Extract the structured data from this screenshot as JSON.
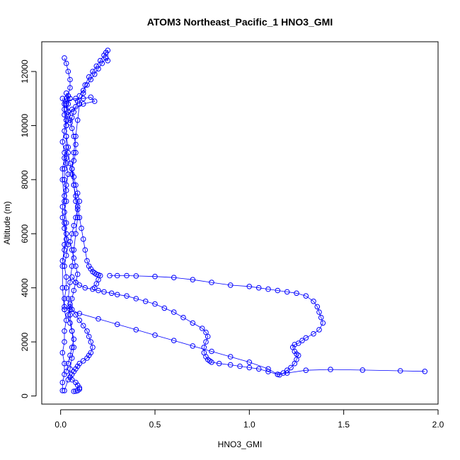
{
  "chart_data": {
    "type": "scatter",
    "title": "ATOM3 Northeast_Pacific_1 HNO3_GMI",
    "xlabel": "HNO3_GMI",
    "ylabel": "Altitude (m)",
    "xlim": [
      -0.1,
      2.0
    ],
    "ylim": [
      -300,
      13100
    ],
    "xticks": [
      0,
      0.5,
      1,
      1.5,
      2
    ],
    "xtick_labels": [
      "0.0",
      "0.5",
      "1.0",
      "1.5",
      "2.0"
    ],
    "yticks": [
      0,
      2000,
      4000,
      6000,
      8000,
      10000,
      12000
    ],
    "ytick_labels": [
      "0",
      "2000",
      "4000",
      "6000",
      "8000",
      "10000",
      "12000"
    ],
    "grid": false,
    "point_style": "open-circle",
    "connected": true,
    "series_color": "#0000ff",
    "series": [
      {
        "x": [
          0.01,
          0.01,
          0.02,
          0.02,
          0.01,
          0.02,
          0.02,
          0.03,
          0.02,
          0.02,
          0.03,
          0.03,
          0.02,
          0.03,
          0.04,
          0.03,
          0.02,
          0.02,
          0.03,
          0.03,
          0.02,
          0.02,
          0.03,
          0.04,
          0.03,
          0.03,
          0.02,
          0.02,
          0.03,
          0.04,
          0.03,
          0.05,
          0.04,
          0.03,
          0.03,
          0.08,
          0.12,
          0.16,
          0.18,
          0.12,
          0.06,
          0.04,
          0.03,
          0.03,
          0.03,
          0.03,
          0.02,
          0.01,
          0.01,
          0.02,
          0.03,
          0.02,
          0.01,
          0.01,
          0.02
        ],
        "y": [
          200,
          500,
          800,
          1200,
          1600,
          2000,
          2400,
          2800,
          3200,
          3600,
          4000,
          4400,
          4800,
          5200,
          5600,
          6000,
          6400,
          6800,
          7200,
          7600,
          8000,
          8400,
          8800,
          9200,
          9600,
          10000,
          10400,
          10800,
          11000,
          11100,
          11200,
          11000,
          10800,
          10600,
          10900,
          11000,
          11000,
          11050,
          10900,
          10800,
          10600,
          10400,
          10200,
          10000,
          9600,
          9200,
          8800,
          8400,
          8000,
          7200,
          6400,
          5600,
          4800,
          4000,
          3200
        ]
      },
      {
        "x": [
          0.02,
          0.04,
          0.05,
          0.06,
          0.07,
          0.06,
          0.05,
          0.04,
          0.05,
          0.06,
          0.07,
          0.08,
          0.09,
          0.08,
          0.07,
          0.06,
          0.07,
          0.08,
          0.09,
          0.1,
          0.12,
          0.13,
          0.15,
          0.17,
          0.19,
          0.21,
          0.23,
          0.24,
          0.25,
          0.25,
          0.24,
          0.22,
          0.2,
          0.18,
          0.16,
          0.14,
          0.12,
          0.1,
          0.09,
          0.08,
          0.07,
          0.06,
          0.05
        ],
        "y": [
          200,
          600,
          1000,
          1400,
          1800,
          2400,
          3000,
          3600,
          4200,
          4800,
          5400,
          6000,
          6600,
          7200,
          7800,
          8400,
          9000,
          9600,
          10200,
          10800,
          11200,
          11500,
          11800,
          12000,
          12200,
          12400,
          12600,
          12700,
          12780,
          12400,
          12500,
          12300,
          12100,
          11900,
          11700,
          11500,
          11300,
          11100,
          10900,
          10700,
          10500,
          10300,
          10100
        ]
      },
      {
        "x": [
          0.02,
          0.03,
          0.04,
          0.05,
          0.05,
          0.04,
          0.03,
          0.04,
          0.05,
          0.06,
          0.07,
          0.08,
          0.08,
          0.07,
          0.06,
          0.07,
          0.08,
          0.09,
          0.1,
          0.09,
          0.08,
          0.07,
          0.06,
          0.05,
          0.06,
          0.07,
          0.08,
          0.09,
          0.08,
          0.07,
          0.06,
          0.05,
          0.04,
          0.05,
          0.06,
          0.07,
          0.06,
          0.05,
          0.04,
          0.03
        ],
        "y": [
          12500,
          12300,
          12000,
          11700,
          11400,
          11100,
          10800,
          10500,
          10200,
          9900,
          9600,
          9300,
          9000,
          8700,
          8400,
          8100,
          7800,
          7500,
          7200,
          6900,
          6600,
          6300,
          6000,
          5700,
          5400,
          5100,
          4800,
          4500,
          4200,
          3900,
          3600,
          3300,
          3000,
          2700,
          2400,
          2100,
          1800,
          1500,
          1200,
          900
        ]
      },
      {
        "x": [
          0.06,
          0.08,
          0.1,
          0.13,
          0.17,
          0.2,
          0.23,
          0.27,
          0.3,
          0.35,
          0.4,
          0.45,
          0.5,
          0.55,
          0.6,
          0.65,
          0.7,
          0.75,
          0.77,
          0.78,
          0.77,
          0.76,
          0.76,
          0.77,
          0.78,
          0.79,
          0.8,
          0.84,
          0.9,
          0.95,
          1.0,
          1.05,
          1.1,
          1.15,
          1.16,
          1.18,
          1.2,
          1.22,
          1.24,
          1.25,
          1.26,
          1.25,
          1.24,
          1.23,
          1.24,
          1.26,
          1.28,
          1.3,
          1.34,
          1.37,
          1.39,
          1.38,
          1.37,
          1.36,
          1.34,
          1.3,
          1.25,
          1.2,
          1.15,
          1.1,
          1.05,
          1.0,
          0.9,
          0.8,
          0.7,
          0.6,
          0.5,
          0.4,
          0.35,
          0.3,
          0.26
        ],
        "y": [
          4400,
          4200,
          4100,
          4000,
          3950,
          3900,
          3850,
          3800,
          3750,
          3700,
          3600,
          3500,
          3400,
          3250,
          3100,
          2900,
          2700,
          2500,
          2350,
          2200,
          2000,
          1800,
          1600,
          1450,
          1350,
          1300,
          1250,
          1200,
          1150,
          1100,
          1050,
          1000,
          900,
          800,
          780,
          850,
          950,
          1050,
          1200,
          1350,
          1500,
          1550,
          1650,
          1800,
          1900,
          1950,
          2050,
          2150,
          2300,
          2450,
          2700,
          2900,
          3100,
          3300,
          3500,
          3700,
          3800,
          3850,
          3900,
          3950,
          4000,
          4050,
          4100,
          4200,
          4300,
          4380,
          4420,
          4440,
          4450,
          4450,
          4450
        ]
      },
      {
        "x": [
          0.02,
          0.05,
          0.1,
          0.2,
          0.3,
          0.4,
          0.5,
          0.6,
          0.7,
          0.8,
          0.9,
          1.0,
          1.1,
          1.15,
          1.2,
          1.3,
          1.43,
          1.6,
          1.8,
          1.93
        ],
        "y": [
          3300,
          3200,
          3050,
          2850,
          2650,
          2450,
          2250,
          2050,
          1850,
          1650,
          1450,
          1250,
          1000,
          800,
          850,
          950,
          980,
          960,
          930,
          910
        ]
      },
      {
        "x": [
          0.05,
          0.06,
          0.08,
          0.1,
          0.12,
          0.14,
          0.15,
          0.16,
          0.17,
          0.16,
          0.15,
          0.14,
          0.12,
          0.1,
          0.09,
          0.08,
          0.07,
          0.06,
          0.05,
          0.06,
          0.08,
          0.09,
          0.1,
          0.1,
          0.09,
          0.08,
          0.07
        ],
        "y": [
          3400,
          3200,
          3000,
          2800,
          2600,
          2400,
          2200,
          2000,
          1800,
          1600,
          1500,
          1400,
          1300,
          1200,
          1100,
          1000,
          900,
          800,
          700,
          600,
          500,
          400,
          300,
          250,
          200,
          180,
          170
        ]
      },
      {
        "x": [
          0.04,
          0.05,
          0.06,
          0.07,
          0.08,
          0.09,
          0.1,
          0.11,
          0.12,
          0.13,
          0.14,
          0.15,
          0.16,
          0.17,
          0.18,
          0.19,
          0.2,
          0.21,
          0.2,
          0.19,
          0.18
        ],
        "y": [
          9000,
          8600,
          8200,
          7800,
          7400,
          7000,
          6600,
          6200,
          5800,
          5400,
          5000,
          4800,
          4700,
          4600,
          4550,
          4500,
          4480,
          4450,
          4300,
          4150,
          4000
        ]
      },
      {
        "x": [
          0.01,
          0.02,
          0.03,
          0.02,
          0.01,
          0.02,
          0.03,
          0.04,
          0.03,
          0.02,
          0.01,
          0.01,
          0.02,
          0.03,
          0.02,
          0.01
        ],
        "y": [
          11000,
          10600,
          10200,
          9800,
          9400,
          9000,
          8600,
          8200,
          7800,
          7400,
          7000,
          6600,
          6200,
          5800,
          5400,
          5000
        ]
      }
    ]
  }
}
